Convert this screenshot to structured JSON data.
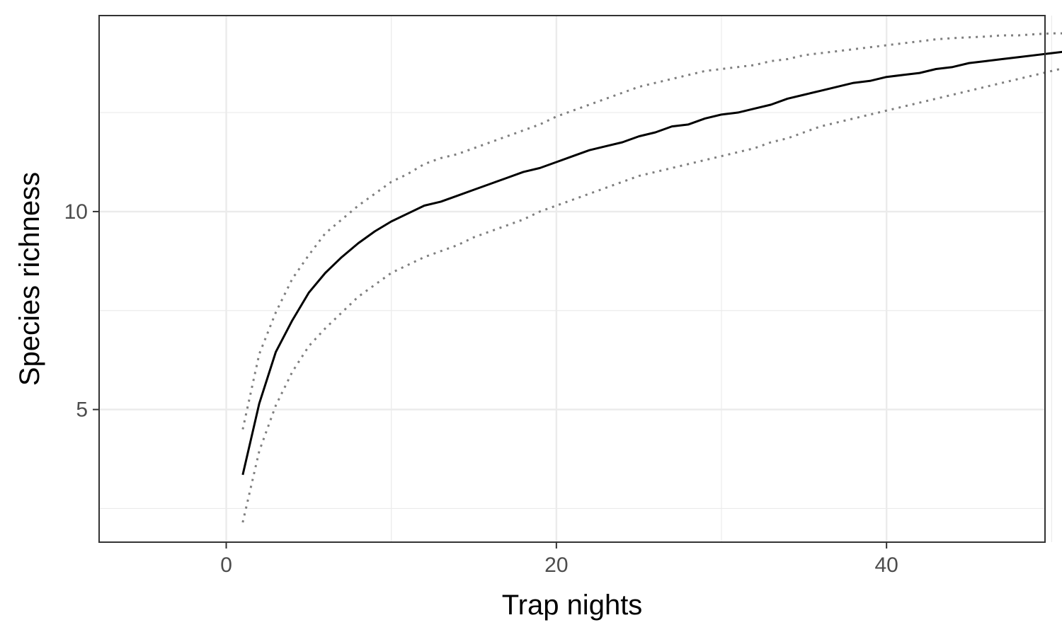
{
  "chart_data": {
    "type": "line",
    "title": "",
    "xlabel": "Trap nights",
    "ylabel": "Species richness",
    "xlim": [
      -7.7,
      49.6
    ],
    "ylim": [
      1.65,
      14.95
    ],
    "x_ticks": [
      0,
      20,
      40
    ],
    "y_ticks": [
      5,
      10
    ],
    "x_minor": [
      10,
      30,
      50
    ],
    "y_minor": [
      2.5,
      7.5,
      12.5
    ],
    "grid": true,
    "legend": "none",
    "colors": {
      "richness": "#000000",
      "bounds": "#7f7f7f",
      "grid": "#ebebeb",
      "frame": "#333333"
    },
    "x": [
      1,
      2,
      3,
      4,
      5,
      6,
      7,
      8,
      9,
      10,
      11,
      12,
      13,
      14,
      15,
      16,
      17,
      18,
      19,
      20,
      21,
      22,
      23,
      24,
      25,
      26,
      27,
      28,
      29,
      30,
      31,
      32,
      33,
      34,
      35,
      36,
      37,
      38,
      39,
      40,
      41,
      42,
      43,
      44,
      45,
      46,
      47,
      48,
      49,
      50,
      51,
      52,
      53
    ],
    "series": [
      {
        "style": "solid",
        "values": [
          3.35,
          5.15,
          6.45,
          7.25,
          7.95,
          8.45,
          8.85,
          9.2,
          9.5,
          9.75,
          9.95,
          10.15,
          10.25,
          10.4,
          10.55,
          10.7,
          10.85,
          11.0,
          11.1,
          11.25,
          11.4,
          11.55,
          11.65,
          11.75,
          11.9,
          12.0,
          12.15,
          12.2,
          12.35,
          12.45,
          12.5,
          12.6,
          12.7,
          12.85,
          12.95,
          13.05,
          13.15,
          13.25,
          13.3,
          13.4,
          13.45,
          13.5,
          13.6,
          13.65,
          13.75,
          13.8,
          13.85,
          13.9,
          13.95,
          14.0,
          14.05,
          14.1,
          14.15
        ]
      },
      {
        "style": "dotted",
        "values": [
          4.5,
          6.4,
          7.45,
          8.3,
          8.9,
          9.45,
          9.8,
          10.15,
          10.45,
          10.75,
          10.95,
          11.2,
          11.35,
          11.45,
          11.6,
          11.75,
          11.9,
          12.05,
          12.2,
          12.4,
          12.55,
          12.7,
          12.85,
          13.0,
          13.15,
          13.25,
          13.35,
          13.45,
          13.55,
          13.6,
          13.65,
          13.7,
          13.8,
          13.85,
          13.95,
          14.0,
          14.05,
          14.1,
          14.15,
          14.2,
          14.25,
          14.3,
          14.35,
          14.38,
          14.4,
          14.42,
          14.45,
          14.45,
          14.48,
          14.5,
          14.5,
          14.48,
          14.35
        ]
      },
      {
        "style": "dotted",
        "values": [
          2.15,
          3.95,
          5.1,
          5.95,
          6.6,
          7.05,
          7.45,
          7.85,
          8.15,
          8.45,
          8.65,
          8.85,
          9.0,
          9.15,
          9.35,
          9.5,
          9.65,
          9.8,
          10.0,
          10.15,
          10.3,
          10.45,
          10.6,
          10.75,
          10.9,
          11.0,
          11.1,
          11.2,
          11.3,
          11.4,
          11.5,
          11.6,
          11.75,
          11.85,
          12.0,
          12.15,
          12.25,
          12.35,
          12.45,
          12.55,
          12.65,
          12.75,
          12.85,
          12.95,
          13.05,
          13.15,
          13.25,
          13.35,
          13.45,
          13.55,
          13.65,
          13.8,
          14.0
        ]
      }
    ]
  }
}
